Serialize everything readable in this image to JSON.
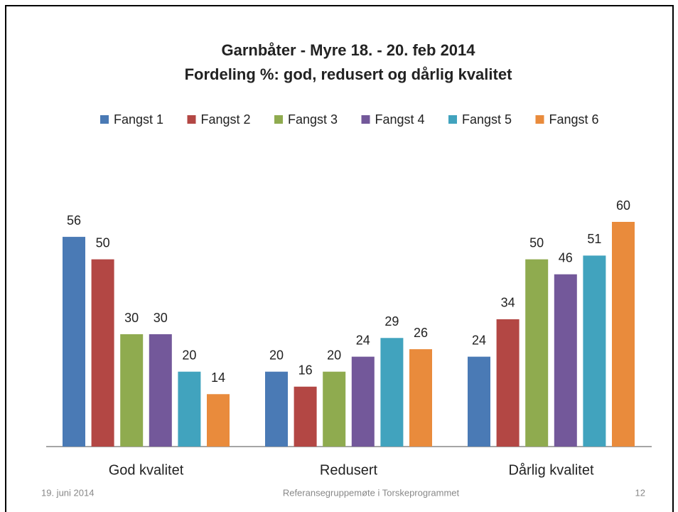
{
  "chart_data": {
    "type": "bar",
    "title": "Garnbåter - Myre 18. - 20. feb 2014",
    "subtitle": "Fordeling %: god, redusert og dårlig kvalitet",
    "categories": [
      "God kvalitet",
      "Redusert",
      "Dårlig kvalitet"
    ],
    "series": [
      {
        "name": "Fangst 1",
        "color": "#4a7ab5",
        "values": [
          56,
          20,
          24
        ]
      },
      {
        "name": "Fangst 2",
        "color": "#b34744",
        "values": [
          50,
          16,
          34
        ]
      },
      {
        "name": "Fangst 3",
        "color": "#8fab4f",
        "values": [
          30,
          20,
          50
        ]
      },
      {
        "name": "Fangst 4",
        "color": "#73589a",
        "values": [
          30,
          24,
          46
        ]
      },
      {
        "name": "Fangst 5",
        "color": "#41a3be",
        "values": [
          20,
          29,
          51
        ]
      },
      {
        "name": "Fangst 6",
        "color": "#e98b3c",
        "values": [
          14,
          26,
          60
        ]
      }
    ],
    "legend": "top"
  },
  "footer": {
    "date": "19. juni 2014",
    "text": "Referansegruppemøte i Torskeprogrammet",
    "page": "12"
  }
}
